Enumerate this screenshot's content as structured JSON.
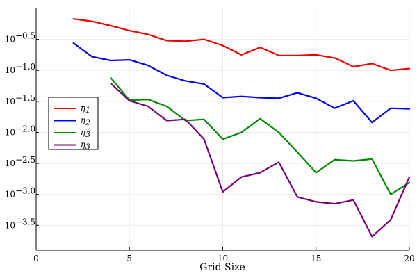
{
  "chart_data": {
    "type": "line",
    "title": "",
    "xlabel": "Grid Size",
    "ylabel": "",
    "xlim": [
      0,
      20
    ],
    "ylim": [
      -3.9,
      0.0
    ],
    "y_scale": "log10",
    "grid": true,
    "legend_position": "left-middle",
    "x_ticks": [
      {
        "value": 0,
        "label": "0"
      },
      {
        "value": 5,
        "label": "5"
      },
      {
        "value": 10,
        "label": "10"
      },
      {
        "value": 15,
        "label": "15"
      },
      {
        "value": 20,
        "label": "20"
      }
    ],
    "y_ticks": [
      {
        "value": -0.5,
        "base": "10",
        "exp": "−0.5"
      },
      {
        "value": -1.0,
        "base": "10",
        "exp": "−1.0"
      },
      {
        "value": -1.5,
        "base": "10",
        "exp": "−1.5"
      },
      {
        "value": -2.0,
        "base": "10",
        "exp": "−2.0"
      },
      {
        "value": -2.5,
        "base": "10",
        "exp": "−2.5"
      },
      {
        "value": -3.0,
        "base": "10",
        "exp": "−3.0"
      },
      {
        "value": -3.5,
        "base": "10",
        "exp": "−3.5"
      }
    ],
    "series": [
      {
        "name": "η",
        "subscript": "1",
        "color": "#ee0000",
        "x": [
          2,
          3,
          4,
          5,
          6,
          7,
          8,
          9,
          10,
          11,
          12,
          13,
          14,
          15,
          16,
          17,
          18,
          19,
          20
        ],
        "y": [
          -0.17,
          -0.21,
          -0.28,
          -0.36,
          -0.42,
          -0.52,
          -0.53,
          -0.5,
          -0.6,
          -0.75,
          -0.63,
          -0.76,
          -0.76,
          -0.75,
          -0.8,
          -0.94,
          -0.89,
          -1.0,
          -0.97
        ]
      },
      {
        "name": "η",
        "subscript": "2",
        "color": "#0000ee",
        "x": [
          2,
          3,
          4,
          5,
          6,
          7,
          8,
          9,
          10,
          11,
          12,
          13,
          14,
          15,
          16,
          17,
          18,
          19,
          20
        ],
        "y": [
          -0.56,
          -0.78,
          -0.84,
          -0.83,
          -0.92,
          -1.08,
          -1.17,
          -1.22,
          -1.44,
          -1.42,
          -1.44,
          -1.45,
          -1.36,
          -1.45,
          -1.61,
          -1.49,
          -1.84,
          -1.61,
          -1.62
        ]
      },
      {
        "name": "η",
        "subscript": "3",
        "color": "#008800",
        "x": [
          4,
          5,
          6,
          7,
          8,
          9,
          10,
          11,
          12,
          13,
          14,
          15,
          16,
          17,
          18,
          19,
          20
        ],
        "y": [
          -1.12,
          -1.48,
          -1.47,
          -1.58,
          -1.81,
          -1.79,
          -2.11,
          -2.0,
          -1.78,
          -2.0,
          -2.32,
          -2.65,
          -2.44,
          -2.46,
          -2.43,
          -3.0,
          -2.81
        ]
      },
      {
        "name": "η",
        "subscript": "3",
        "color": "#770077",
        "x": [
          4,
          5,
          6,
          7,
          8,
          9,
          10,
          11,
          12,
          13,
          14,
          15,
          16,
          17,
          18,
          19,
          20
        ],
        "y": [
          -1.21,
          -1.49,
          -1.58,
          -1.81,
          -1.79,
          -2.11,
          -2.96,
          -2.72,
          -2.65,
          -2.48,
          -3.04,
          -3.12,
          -3.15,
          -3.09,
          -3.68,
          -3.41,
          -2.72
        ]
      }
    ]
  }
}
